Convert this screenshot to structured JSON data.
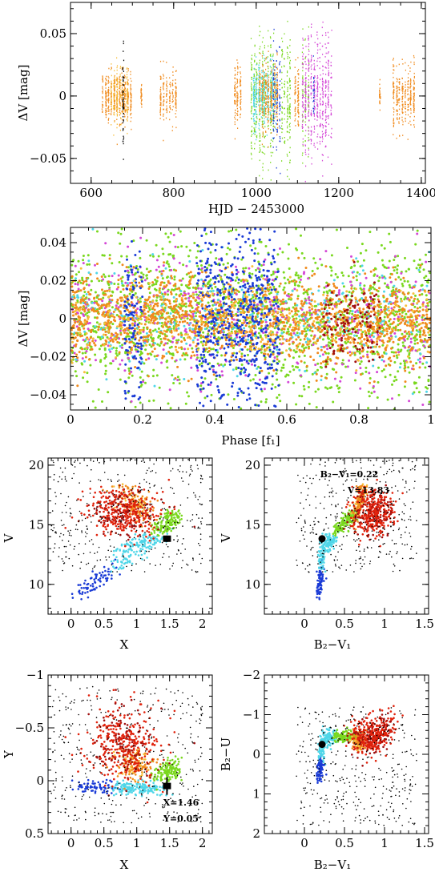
{
  "colors": {
    "orange": "#f08a1c",
    "yellow": "#f7bf3c",
    "lime": "#7ad81e",
    "cyan": "#4fd6e8",
    "blue": "#1a3bd6",
    "magenta": "#d447d6",
    "red": "#e0220c",
    "dark_red": "#a01010",
    "black": "#000000"
  },
  "chart_data": [
    {
      "id": "lightcurve",
      "type": "scatter",
      "xlabel": "HJD − 2453000",
      "ylabel": "ΔV [mag]",
      "xlim": [
        550,
        1410
      ],
      "ylim": [
        0.075,
        -0.07
      ],
      "xticks": [
        600,
        800,
        1000,
        1200,
        1400
      ],
      "yticks": [
        -0.05,
        0,
        0.05
      ],
      "ytick_labels": [
        "−0.05",
        "0",
        "0.05"
      ],
      "segments": [
        {
          "x": [
            625,
            700
          ],
          "amp": 0.022,
          "color": "orange"
        },
        {
          "x": [
            645,
            690
          ],
          "amp": 0.026,
          "color": "yellow"
        },
        {
          "x": [
            676,
            682
          ],
          "amp": 0.05,
          "color": "black"
        },
        {
          "x": [
            720,
            725
          ],
          "amp": 0.012,
          "color": "orange"
        },
        {
          "x": [
            765,
            810
          ],
          "amp": 0.022,
          "color": "orange"
        },
        {
          "x": [
            945,
            965
          ],
          "amp": 0.028,
          "color": "orange"
        },
        {
          "x": [
            985,
            1045
          ],
          "amp": 0.06,
          "color": "lime"
        },
        {
          "x": [
            990,
            1050
          ],
          "amp": 0.03,
          "color": "cyan"
        },
        {
          "x": [
            1005,
            1055
          ],
          "amp": 0.032,
          "color": "orange"
        },
        {
          "x": [
            1040,
            1060
          ],
          "amp": 0.06,
          "color": "blue"
        },
        {
          "x": [
            1060,
            1085
          ],
          "amp": 0.06,
          "color": "lime"
        },
        {
          "x": [
            1090,
            1105
          ],
          "amp": 0.028,
          "color": "orange"
        },
        {
          "x": [
            1110,
            1130
          ],
          "amp": 0.055,
          "color": "lime"
        },
        {
          "x": [
            1110,
            1185
          ],
          "amp": 0.06,
          "color": "magenta"
        },
        {
          "x": [
            1135,
            1145
          ],
          "amp": 0.03,
          "color": "blue"
        },
        {
          "x": [
            1295,
            1305
          ],
          "amp": 0.012,
          "color": "orange"
        },
        {
          "x": [
            1330,
            1385
          ],
          "amp": 0.03,
          "color": "orange"
        }
      ]
    },
    {
      "id": "phase",
      "type": "scatter",
      "xlabel": "Phase [f₁]",
      "ylabel": "ΔV [mag]",
      "xlim": [
        0,
        1
      ],
      "ylim": [
        0.048,
        -0.048
      ],
      "xticks": [
        0,
        0.2,
        0.4,
        0.6,
        0.8,
        1
      ],
      "xtick_labels": [
        "0",
        "0.2",
        "0.4",
        "0.6",
        "0.8",
        "1"
      ],
      "yticks": [
        -0.04,
        -0.02,
        0,
        0.02,
        0.04
      ],
      "ytick_labels": [
        "−0.04",
        "−0.02",
        "0",
        "0.02",
        "0.04"
      ],
      "groups": [
        {
          "color": "lime",
          "n": 1700,
          "spread": 0.02
        },
        {
          "color": "magenta",
          "n": 500,
          "spread": 0.018
        },
        {
          "color": "cyan",
          "n": 400,
          "spread": 0.014
        },
        {
          "color": "orange",
          "n": 1500,
          "spread": 0.011
        },
        {
          "color": "blue",
          "n": 550,
          "spread": 0.026,
          "x": [
            0.35,
            0.58
          ]
        },
        {
          "color": "blue",
          "n": 120,
          "spread": 0.024,
          "x": [
            0.15,
            0.2
          ]
        },
        {
          "color": "yellow",
          "n": 300,
          "spread": 0.01
        },
        {
          "color": "dark_red",
          "n": 120,
          "spread": 0.01,
          "x": [
            0.7,
            0.86
          ]
        }
      ]
    },
    {
      "id": "cmd-xv",
      "type": "scatter",
      "xlabel": "X",
      "ylabel": "V",
      "xlim": [
        -0.35,
        2.15
      ],
      "ylim": [
        20.6,
        7.5
      ],
      "xticks": [
        0,
        0.5,
        1,
        1.5,
        2
      ],
      "xtick_labels": [
        "0",
        "0.5",
        "1",
        "1.5",
        "2"
      ],
      "yticks": [
        10,
        15,
        20
      ],
      "ytick_labels": [
        "10",
        "15",
        "20"
      ],
      "star": {
        "x": 1.46,
        "y": 13.83
      }
    },
    {
      "id": "cmd-bv",
      "type": "scatter",
      "xlabel": "B₂−V₁",
      "ylabel": "V",
      "xlim": [
        -0.5,
        1.55
      ],
      "ylim": [
        20.6,
        7.5
      ],
      "xticks": [
        0,
        0.5,
        1,
        1.5
      ],
      "xtick_labels": [
        "0",
        "0.5",
        "1",
        "1.5"
      ],
      "yticks": [
        10,
        15,
        20
      ],
      "ytick_labels": [
        "10",
        "15",
        "20"
      ],
      "star": {
        "x": 0.22,
        "y": 13.83
      },
      "annotation": [
        "B₂−V₁=0.22",
        "V=13.83"
      ]
    },
    {
      "id": "cc-xy",
      "type": "scatter",
      "xlabel": "X",
      "ylabel": "Y",
      "xlim": [
        -0.35,
        2.15
      ],
      "ylim": [
        -1.0,
        0.5
      ],
      "xticks": [
        0,
        0.5,
        1,
        1.5,
        2
      ],
      "xtick_labels": [
        "0",
        "0.5",
        "1",
        "1.5",
        "2"
      ],
      "yticks": [
        -1,
        -0.5,
        0,
        0.5
      ],
      "ytick_labels": [
        "−1",
        "−0.5",
        "0",
        "0.5"
      ],
      "star": {
        "x": 1.46,
        "y": 0.05
      },
      "annotation": [
        "X=1.46",
        "Y=0.05"
      ]
    },
    {
      "id": "cc-bu",
      "type": "scatter",
      "xlabel": "B₂−V₁",
      "ylabel": "B₂−U",
      "xlim": [
        -0.5,
        1.55
      ],
      "ylim": [
        -2.0,
        2.0
      ],
      "xticks": [
        0,
        0.5,
        1,
        1.5
      ],
      "xtick_labels": [
        "0",
        "0.5",
        "1",
        "1.5"
      ],
      "yticks": [
        -2,
        -1,
        0,
        1,
        2
      ],
      "ytick_labels": [
        "−2",
        "−1",
        "0",
        "1",
        "2"
      ],
      "star": {
        "x": 0.22,
        "y": -0.25
      }
    }
  ]
}
